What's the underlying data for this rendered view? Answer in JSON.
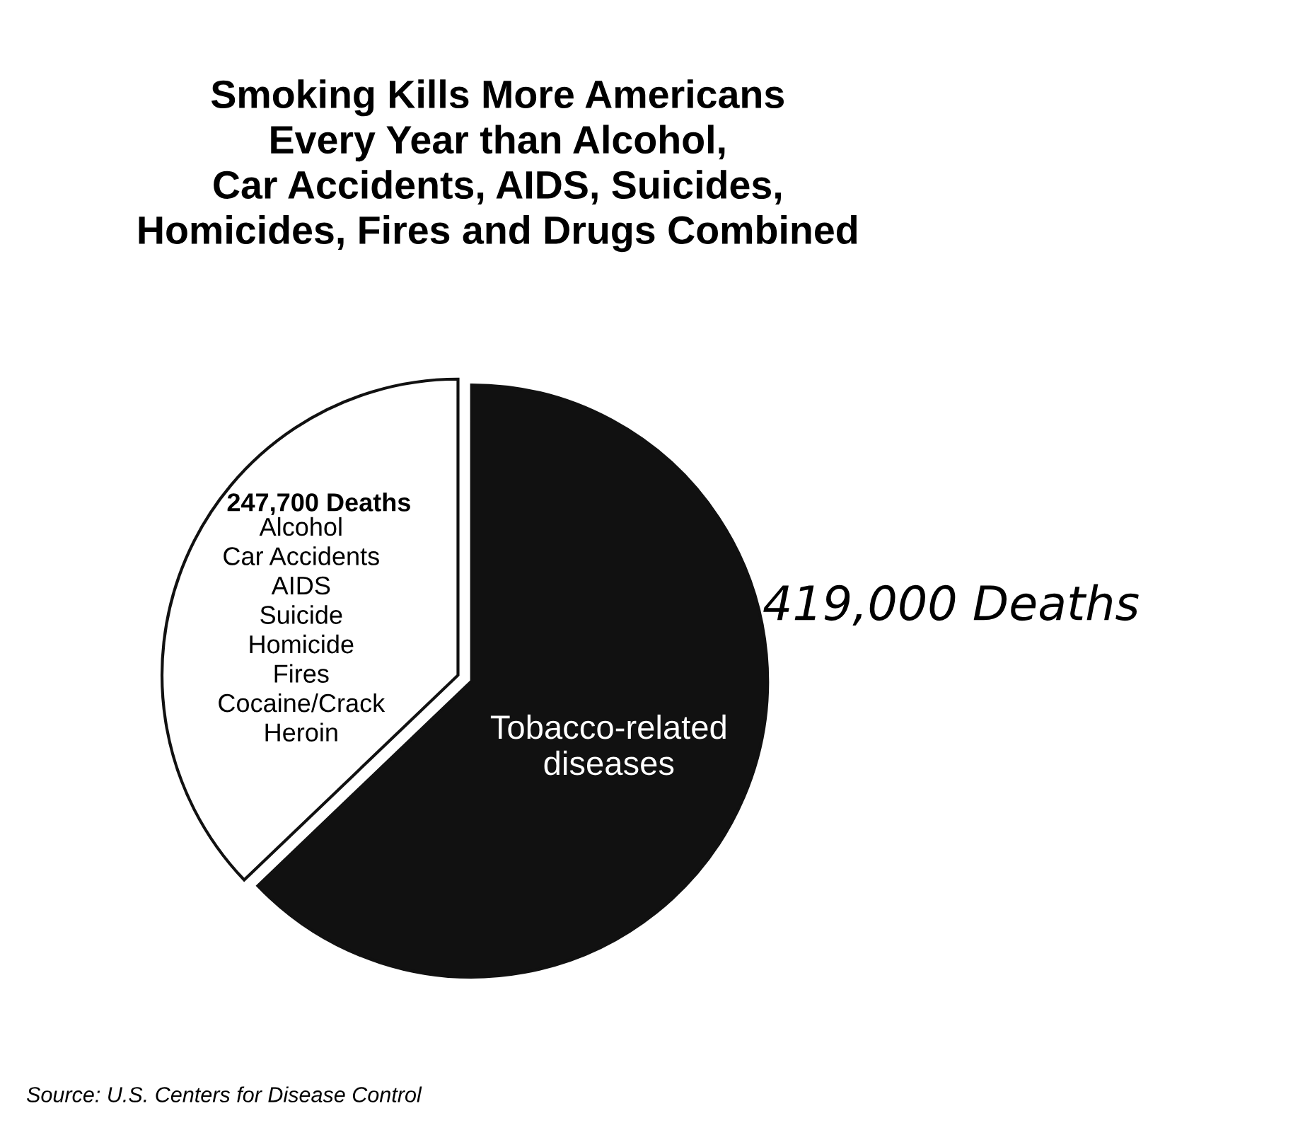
{
  "chart_data": {
    "type": "pie",
    "title": "Smoking Kills More Americans\nEvery Year than Alcohol,\nCar Accidents, AIDS, Suicides,\nHomicides, Fires and Drugs Combined",
    "categories": [
      "Tobacco-related\ndiseases",
      "Alcohol\nCar Accidents\nAIDS\nSuicide\nHomicide\nFires\nCocaine/Crack\nHeroin"
    ],
    "values": [
      419000,
      247700
    ],
    "value_labels": [
      "419,000 Deaths",
      "247,700 Deaths"
    ],
    "colors": [
      "#111111",
      "#ffffff"
    ],
    "annotations": [
      "Source: U.S. Centers for Disease Control"
    ]
  }
}
